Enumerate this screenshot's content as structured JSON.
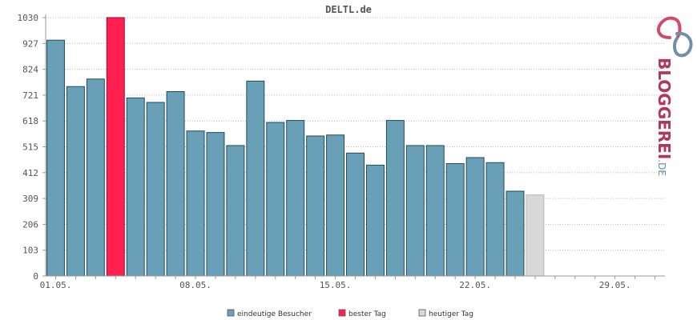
{
  "chart_data": {
    "type": "bar",
    "title": "DELTL.de",
    "yticks": [
      0,
      103,
      206,
      309,
      412,
      515,
      618,
      721,
      824,
      927,
      1030
    ],
    "ylim": [
      0,
      1030
    ],
    "xlim_days": 31,
    "grid": true,
    "x_labels": [
      {
        "day": 1,
        "label": "01.05."
      },
      {
        "day": 8,
        "label": "08.05."
      },
      {
        "day": 15,
        "label": "15.05."
      },
      {
        "day": 22,
        "label": "22.05."
      },
      {
        "day": 29,
        "label": "29.05."
      }
    ],
    "series": [
      {
        "name": "eindeutige Besucher",
        "color": "#6a9fb8",
        "role": "normal"
      },
      {
        "name": "bester Tag",
        "color": "#ff2050",
        "role": "best"
      },
      {
        "name": "heutiger Tag",
        "color": "#d8d8d8",
        "role": "today"
      }
    ],
    "bars": [
      {
        "day": 1,
        "value": 940,
        "role": "normal"
      },
      {
        "day": 2,
        "value": 755,
        "role": "normal"
      },
      {
        "day": 3,
        "value": 785,
        "role": "normal"
      },
      {
        "day": 4,
        "value": 1030,
        "role": "best"
      },
      {
        "day": 5,
        "value": 710,
        "role": "normal"
      },
      {
        "day": 6,
        "value": 692,
        "role": "normal"
      },
      {
        "day": 7,
        "value": 735,
        "role": "normal"
      },
      {
        "day": 8,
        "value": 578,
        "role": "normal"
      },
      {
        "day": 9,
        "value": 572,
        "role": "normal"
      },
      {
        "day": 10,
        "value": 520,
        "role": "normal"
      },
      {
        "day": 11,
        "value": 777,
        "role": "normal"
      },
      {
        "day": 12,
        "value": 612,
        "role": "normal"
      },
      {
        "day": 13,
        "value": 620,
        "role": "normal"
      },
      {
        "day": 14,
        "value": 558,
        "role": "normal"
      },
      {
        "day": 15,
        "value": 562,
        "role": "normal"
      },
      {
        "day": 16,
        "value": 490,
        "role": "normal"
      },
      {
        "day": 17,
        "value": 442,
        "role": "normal"
      },
      {
        "day": 18,
        "value": 620,
        "role": "normal"
      },
      {
        "day": 19,
        "value": 520,
        "role": "normal"
      },
      {
        "day": 20,
        "value": 520,
        "role": "normal"
      },
      {
        "day": 21,
        "value": 448,
        "role": "normal"
      },
      {
        "day": 22,
        "value": 472,
        "role": "normal"
      },
      {
        "day": 23,
        "value": 452,
        "role": "normal"
      },
      {
        "day": 24,
        "value": 338,
        "role": "normal"
      },
      {
        "day": 25,
        "value": 323,
        "role": "today"
      }
    ],
    "legend_position": "bottom-center"
  },
  "logo": {
    "text_main": "BLOGGEREI",
    "text_suffix": ".DE",
    "color_main": "#b0385a",
    "color_suffix": "#6a8aa8"
  }
}
